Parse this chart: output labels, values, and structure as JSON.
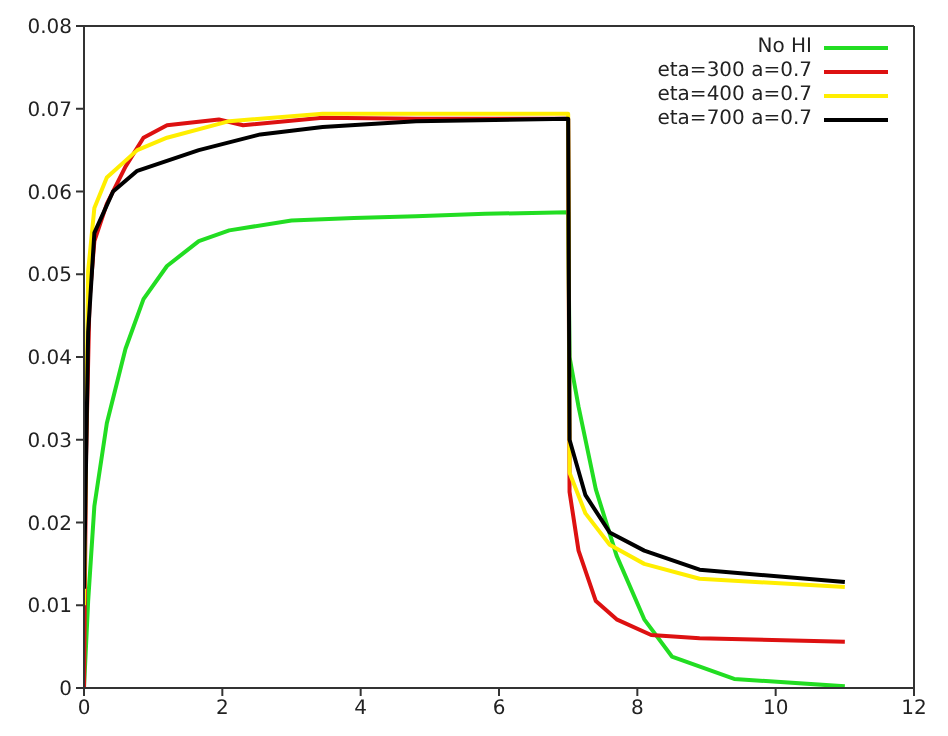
{
  "chart_data": {
    "type": "line",
    "xlim": [
      0,
      12
    ],
    "xticks": [
      0,
      2,
      4,
      6,
      8,
      10,
      12
    ],
    "ylim": [
      0,
      0.08
    ],
    "yticks": [
      0,
      0.01,
      0.02,
      0.03,
      0.04,
      0.05,
      0.06,
      0.07,
      0.08
    ],
    "legend": "top right",
    "marker": "none",
    "line_style": "solid",
    "series": [
      {
        "name": "No HI",
        "color": "#22dd22",
        "x": [
          0,
          0.06,
          0.15,
          0.33,
          0.6,
          0.86,
          1.2,
          1.66,
          2.1,
          3,
          3.9,
          4.8,
          5.8,
          7,
          7.02,
          7.15,
          7.4,
          7.7,
          8.1,
          8.5,
          9.4,
          11
        ],
        "values": [
          0,
          0.0105,
          0.022,
          0.032,
          0.041,
          0.047,
          0.051,
          0.054,
          0.0553,
          0.0565,
          0.0568,
          0.057,
          0.0573,
          0.0575,
          0.04,
          0.034,
          0.024,
          0.016,
          0.0083,
          0.0038,
          0.0011,
          0.0002
        ]
      },
      {
        "name": "eta=300 a=0.7",
        "color": "#dd1111",
        "x": [
          0,
          0.03,
          0.08,
          0.15,
          0.33,
          0.6,
          0.86,
          1.2,
          1.95,
          2.3,
          3.45,
          4.8,
          7,
          7.02,
          7.15,
          7.4,
          7.7,
          8.2,
          8.9,
          11
        ],
        "values": [
          0,
          0.028,
          0.047,
          0.054,
          0.0585,
          0.063,
          0.0665,
          0.068,
          0.0687,
          0.068,
          0.0689,
          0.0688,
          0.0688,
          0.0237,
          0.0166,
          0.0105,
          0.0083,
          0.0064,
          0.006,
          0.0056
        ]
      },
      {
        "name": "eta=400 a=0.7",
        "color": "#ffee00",
        "x": [
          0,
          0.06,
          0.15,
          0.33,
          0.77,
          1.2,
          2.1,
          3.45,
          7,
          7.02,
          7.25,
          7.6,
          8.1,
          8.9,
          11
        ],
        "values": [
          0.01,
          0.0504,
          0.058,
          0.0617,
          0.065,
          0.0665,
          0.0685,
          0.0694,
          0.0694,
          0.026,
          0.0211,
          0.0173,
          0.015,
          0.0132,
          0.0122
        ]
      },
      {
        "name": "eta=700 a=0.7",
        "color": "#000000",
        "x": [
          0,
          0.06,
          0.15,
          0.42,
          0.77,
          1.66,
          2.55,
          3.45,
          4.8,
          7,
          7.02,
          7.25,
          7.6,
          8.1,
          8.9,
          11
        ],
        "values": [
          0.012,
          0.043,
          0.055,
          0.06,
          0.0625,
          0.065,
          0.0669,
          0.0678,
          0.0685,
          0.0688,
          0.03,
          0.0233,
          0.0188,
          0.0166,
          0.0143,
          0.0128
        ]
      }
    ]
  }
}
